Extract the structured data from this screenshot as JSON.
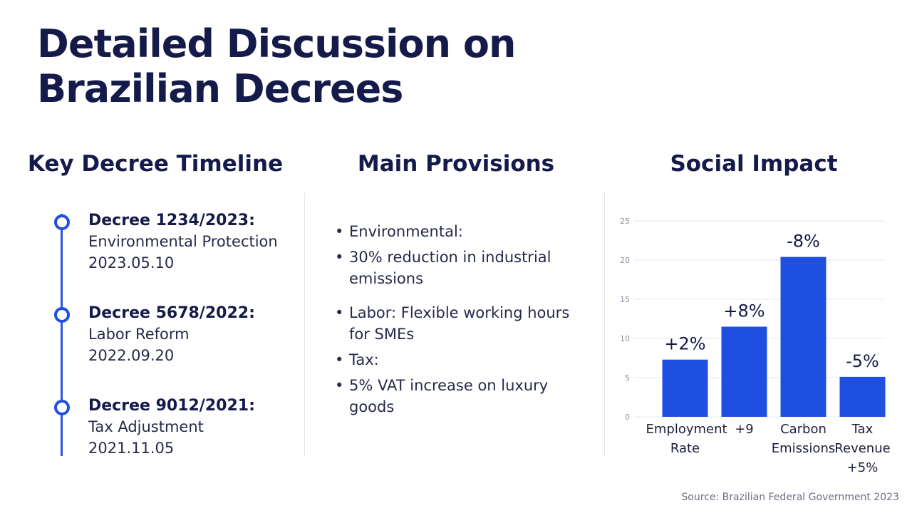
{
  "title": "Detailed Discussion on Brazilian Decrees",
  "timeline": {
    "heading": "Key Decree Timeline",
    "items": [
      {
        "name": "Decree 1234/2023:",
        "subject": "Environmental Protection",
        "date": "2023.05.10"
      },
      {
        "name": "Decree 5678/2022:",
        "subject": "Labor Reform",
        "date": "2022.09.20"
      },
      {
        "name": "Decree 9012/2021:",
        "subject": "Tax Adjustment",
        "date": "2021.11.05"
      }
    ]
  },
  "provisions": {
    "heading": "Main Provisions",
    "items": [
      "Environmental:",
      "30% reduction in industrial emissions",
      "Labor: Flexible working hours for SMEs",
      "Tax:",
      "5% VAT increase on luxury goods"
    ]
  },
  "impact_heading": "Social Impact",
  "chart_data": {
    "type": "bar",
    "categories": [
      "Employment Rate",
      "+9",
      "Carbon Emissions",
      "Tax Revenue +5%"
    ],
    "values": [
      7.3,
      11.5,
      20.4,
      5.1
    ],
    "annotations": [
      "+2%",
      "+8%",
      "-8%",
      "-5%"
    ],
    "color": "#1f4fe0",
    "ylim": [
      0,
      25
    ],
    "yticks": [
      0,
      5,
      10,
      15,
      20,
      25
    ],
    "grid": true
  },
  "source": "Source: Brazilian Federal Government 2023"
}
